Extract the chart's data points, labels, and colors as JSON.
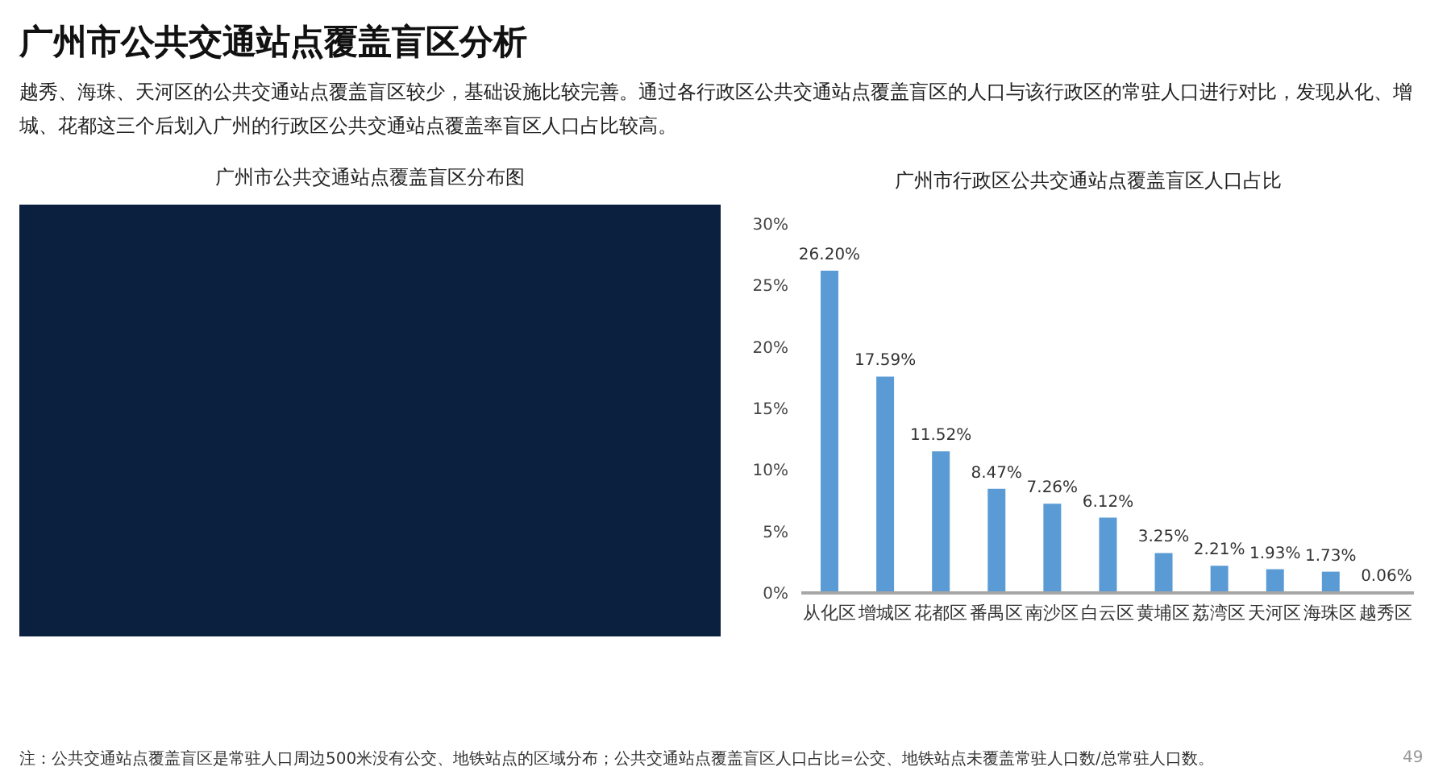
{
  "chart_data": [
    {
      "type": "other",
      "title": "广州市公共交通站点覆盖盲区分析",
      "subtitle": "越秀、海珠、天河区的公共交通站点覆盖盲区较少，基础设施比较完善。通过各行政区公共交通站点覆盖盲区的人口与该行政区的常驻人口进行对比，发现从化、增城、花都这三个后划入广州的行政区公共交通站点覆盖率盲区人口占比较高。",
      "annotations": [
        "广州市公共交通站点覆盖盲区分布图",
        "注：公共交通站点覆盖盲区是常驻人口周边500米没有公交、地铁站点的区域分布；公共交通站点覆盖盲区人口占比=公交、地铁站点未覆盖常驻人口数/总常驻人口数。",
        "49"
      ]
    },
    {
      "type": "bar",
      "title": "广州市行政区公共交通站点覆盖盲区人口占比",
      "categories": [
        "从化区",
        "增城区",
        "花都区",
        "番禺区",
        "南沙区",
        "白云区",
        "黄埔区",
        "荔湾区",
        "天河区",
        "海珠区",
        "越秀区"
      ],
      "values": [
        26.2,
        17.59,
        11.52,
        8.47,
        7.26,
        6.12,
        3.25,
        2.21,
        1.93,
        1.73,
        0.06
      ],
      "value_labels": [
        "26.20%",
        "17.59%",
        "11.52%",
        "8.47%",
        "7.26%",
        "6.12%",
        "3.25%",
        "2.21%",
        "1.93%",
        "1.73%",
        "0.06%"
      ],
      "color": "#5b9bd5",
      "ylim": [
        0,
        30
      ],
      "yticks": [
        {
          "value": 0,
          "label": "0%"
        },
        {
          "value": 5,
          "label": "5%"
        },
        {
          "value": 10,
          "label": "10%"
        },
        {
          "value": 15,
          "label": "15%"
        },
        {
          "value": 20,
          "label": "20%"
        },
        {
          "value": 25,
          "label": "25%"
        },
        {
          "value": 30,
          "label": "30%"
        }
      ]
    }
  ]
}
